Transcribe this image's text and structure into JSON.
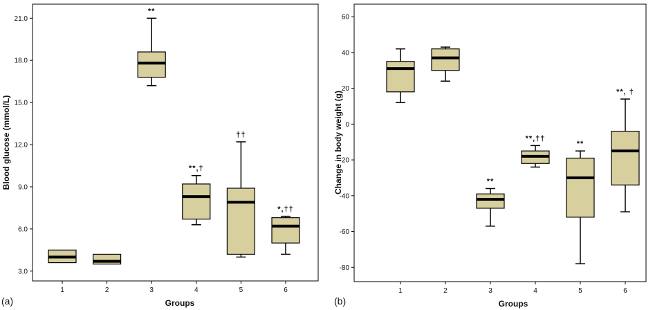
{
  "chart_data": [
    {
      "type": "box",
      "panel_label": "(a)",
      "title": "",
      "xlabel": "Groups",
      "ylabel": "Blood glucose (mmol/L)",
      "categories": [
        "1",
        "2",
        "3",
        "4",
        "5",
        "6"
      ],
      "ylim": [
        2.3,
        22.0
      ],
      "yticks": [
        3.0,
        6.0,
        9.0,
        12.0,
        15.0,
        18.0,
        21.0
      ],
      "ytick_labels": [
        "3.0",
        "6.0",
        "9.0",
        "12.0",
        "15.0",
        "18.0",
        "21.0"
      ],
      "box_color": "#d8cf9f",
      "boxes": [
        {
          "group": "1",
          "min": 3.6,
          "q1": 3.6,
          "median": 4.0,
          "q3": 4.5,
          "max": 4.5,
          "annotation": ""
        },
        {
          "group": "2",
          "min": 3.5,
          "q1": 3.5,
          "median": 3.7,
          "q3": 4.2,
          "max": 4.2,
          "annotation": ""
        },
        {
          "group": "3",
          "min": 16.2,
          "q1": 16.8,
          "median": 17.8,
          "q3": 18.6,
          "max": 21.0,
          "annotation": "**"
        },
        {
          "group": "4",
          "min": 6.3,
          "q1": 6.7,
          "median": 8.3,
          "q3": 9.2,
          "max": 9.8,
          "annotation": "**,†"
        },
        {
          "group": "5",
          "min": 4.0,
          "q1": 4.2,
          "median": 7.9,
          "q3": 8.9,
          "max": 12.2,
          "annotation": "††"
        },
        {
          "group": "6",
          "min": 4.2,
          "q1": 5.0,
          "median": 6.2,
          "q3": 6.8,
          "max": 6.9,
          "annotation": "*,††"
        }
      ]
    },
    {
      "type": "box",
      "panel_label": "(b)",
      "title": "",
      "xlabel": "Groups",
      "ylabel": "Change in body weight (g)",
      "categories": [
        "1",
        "2",
        "3",
        "4",
        "5",
        "6"
      ],
      "ylim": [
        -88,
        67
      ],
      "yticks": [
        -80,
        -60,
        -40,
        -20,
        0,
        20,
        40,
        60
      ],
      "ytick_labels": [
        "-80",
        "-60",
        "-40",
        "-20",
        "0",
        "20",
        "40",
        "60"
      ],
      "box_color": "#d8cf9f",
      "boxes": [
        {
          "group": "1",
          "min": 12,
          "q1": 18,
          "median": 31,
          "q3": 35,
          "max": 42,
          "annotation": ""
        },
        {
          "group": "2",
          "min": 24,
          "q1": 30,
          "median": 37,
          "q3": 42,
          "max": 43,
          "annotation": ""
        },
        {
          "group": "3",
          "min": -57,
          "q1": -47,
          "median": -42,
          "q3": -39,
          "max": -36,
          "annotation": "**"
        },
        {
          "group": "4",
          "min": -24,
          "q1": -22,
          "median": -18,
          "q3": -15,
          "max": -12,
          "annotation": "**,††"
        },
        {
          "group": "5",
          "min": -78,
          "q1": -52,
          "median": -30,
          "q3": -19,
          "max": -15,
          "annotation": "**"
        },
        {
          "group": "6",
          "min": -49,
          "q1": -34,
          "median": -15,
          "q3": -4,
          "max": 14,
          "annotation": "**, †"
        }
      ]
    }
  ]
}
